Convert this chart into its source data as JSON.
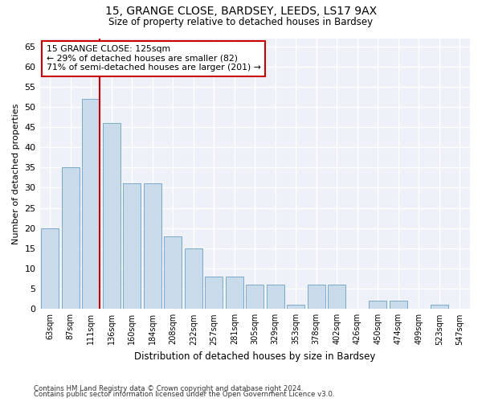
{
  "title1": "15, GRANGE CLOSE, BARDSEY, LEEDS, LS17 9AX",
  "title2": "Size of property relative to detached houses in Bardsey",
  "xlabel": "Distribution of detached houses by size in Bardsey",
  "ylabel": "Number of detached properties",
  "categories": [
    "63sqm",
    "87sqm",
    "111sqm",
    "136sqm",
    "160sqm",
    "184sqm",
    "208sqm",
    "232sqm",
    "257sqm",
    "281sqm",
    "305sqm",
    "329sqm",
    "353sqm",
    "378sqm",
    "402sqm",
    "426sqm",
    "450sqm",
    "474sqm",
    "499sqm",
    "523sqm",
    "547sqm"
  ],
  "values": [
    20,
    35,
    52,
    46,
    31,
    31,
    18,
    15,
    8,
    8,
    6,
    6,
    1,
    6,
    6,
    0,
    2,
    2,
    0,
    1,
    0
  ],
  "bar_color": "#c9daea",
  "bar_edge_color": "#7aaac8",
  "vline_index": 2,
  "vline_color": "#cc0000",
  "annotation_text": "15 GRANGE CLOSE: 125sqm\n← 29% of detached houses are smaller (82)\n71% of semi-detached houses are larger (201) →",
  "annotation_box_color": "#ffffff",
  "annotation_box_edge": "#cc0000",
  "ylim": [
    0,
    67
  ],
  "yticks": [
    0,
    5,
    10,
    15,
    20,
    25,
    30,
    35,
    40,
    45,
    50,
    55,
    60,
    65
  ],
  "footnote1": "Contains HM Land Registry data © Crown copyright and database right 2024.",
  "footnote2": "Contains public sector information licensed under the Open Government Licence v3.0.",
  "background_color": "#ffffff",
  "plot_bg_color": "#eef2f8"
}
